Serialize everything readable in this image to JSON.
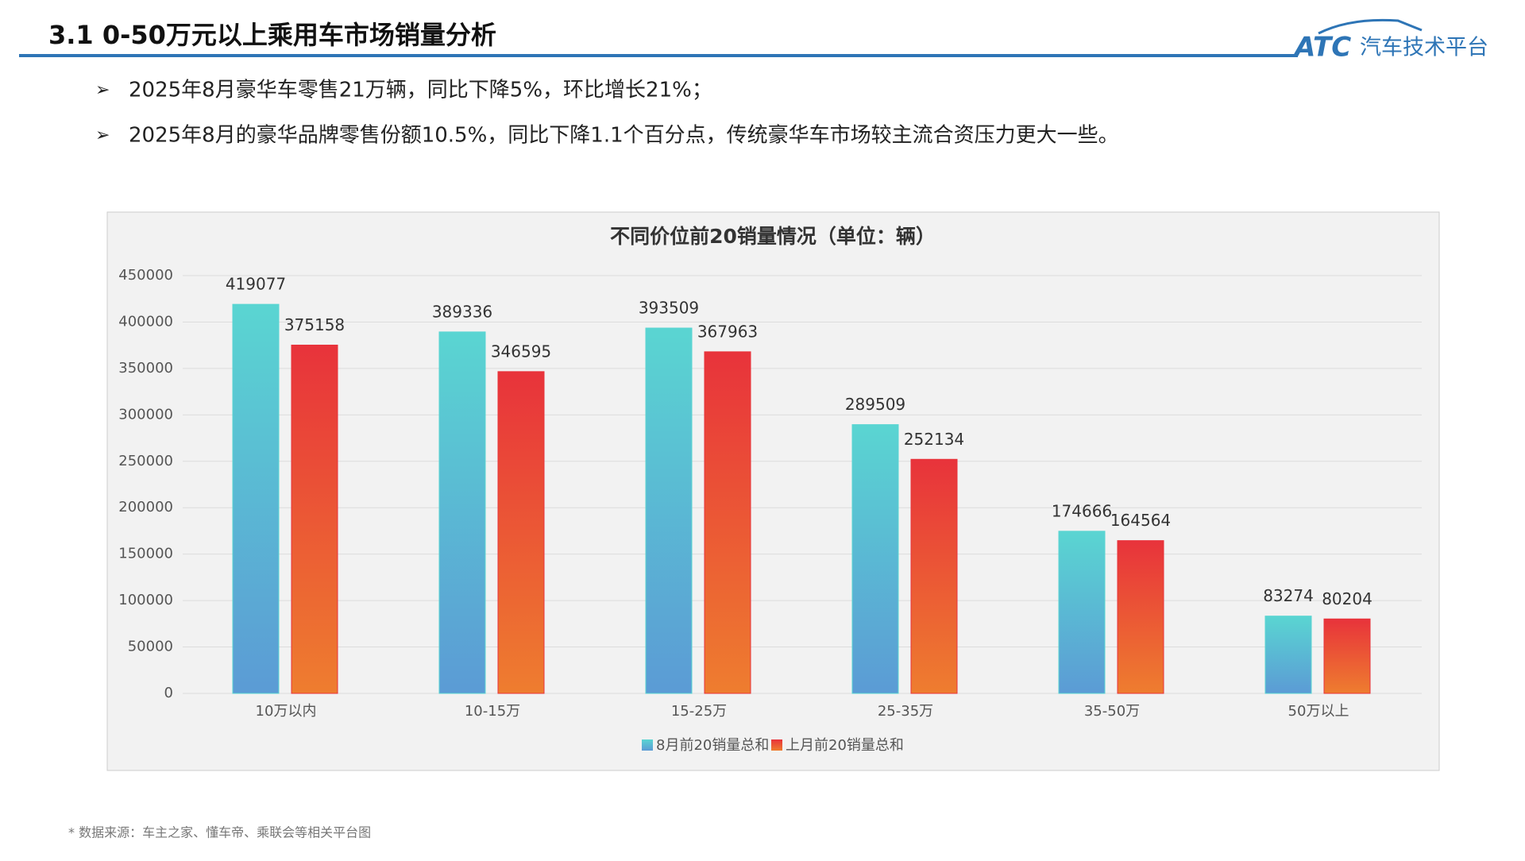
{
  "header": {
    "title": "3.1 0-50万元以上乘用车市场销量分析",
    "logo": "ATC",
    "logo_text": "汽车技术平台"
  },
  "bullets": [
    "2025年8月豪华车零售21万辆，同比下降5%，环比增长21%；",
    "2025年8月的豪华品牌零售份额10.5%，同比下降1.1个百分点，传统豪华车市场较主流合资压力更大一些。"
  ],
  "bullet_marker": "➢",
  "chart_data": {
    "type": "bar",
    "title": "不同价位前20销量情况（单位：辆）",
    "categories": [
      "10万以内",
      "10-15万",
      "15-25万",
      "25-35万",
      "35-50万",
      "50万以上"
    ],
    "series": [
      {
        "name": "8月前20销量总和",
        "color": "#5ad5d2",
        "values": [
          419077,
          389336,
          393509,
          289509,
          174666,
          83274
        ]
      },
      {
        "name": "上月前20销量总和",
        "color": "#e8333b",
        "values": [
          375158,
          346595,
          367963,
          252134,
          164564,
          80204
        ]
      }
    ],
    "ylim": [
      0,
      450000
    ],
    "yticks": [
      0,
      50000,
      100000,
      150000,
      200000,
      250000,
      300000,
      350000,
      400000,
      450000
    ],
    "grid": true,
    "legend": "bottom"
  },
  "footnote": "* 数据来源：车主之家、懂车帝、乘联会等相关平台图"
}
